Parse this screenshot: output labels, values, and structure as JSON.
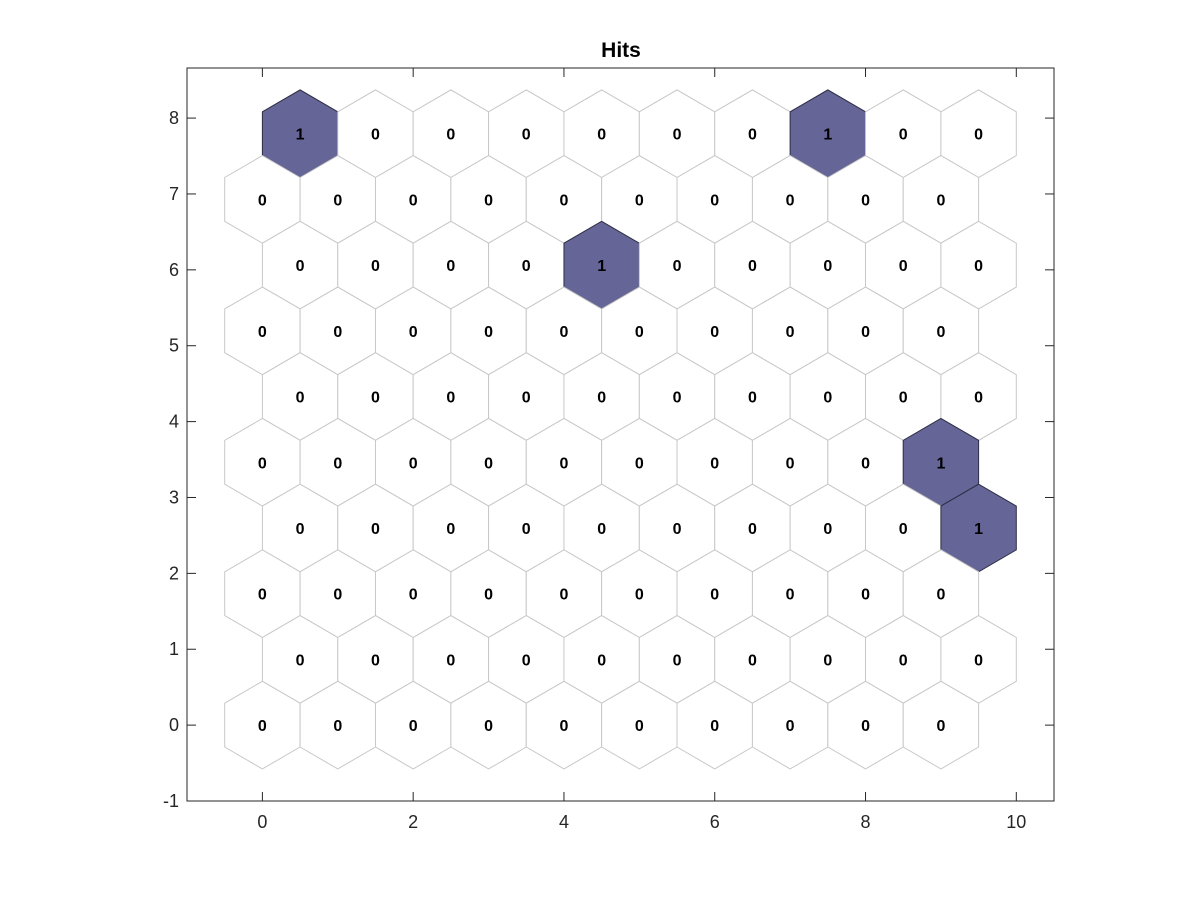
{
  "chart_data": {
    "type": "heatmap",
    "title": "Hits",
    "xlim": [
      -1,
      10.5
    ],
    "ylim": [
      -1,
      8.66
    ],
    "x_ticks": [
      0,
      2,
      4,
      6,
      8,
      10
    ],
    "y_ticks": [
      -1,
      0,
      1,
      2,
      3,
      4,
      5,
      6,
      7,
      8
    ],
    "grid": false,
    "grid_size": {
      "cols": 10,
      "rows": 10
    },
    "topology": "hexagonal",
    "hits": [
      [
        1,
        0,
        0,
        0,
        0,
        0,
        0,
        1,
        0,
        0
      ],
      [
        0,
        0,
        0,
        0,
        0,
        0,
        0,
        0,
        0,
        0
      ],
      [
        0,
        0,
        0,
        0,
        1,
        0,
        0,
        0,
        0,
        0
      ],
      [
        0,
        0,
        0,
        0,
        0,
        0,
        0,
        0,
        0,
        0
      ],
      [
        0,
        0,
        0,
        0,
        0,
        0,
        0,
        0,
        0,
        0
      ],
      [
        0,
        0,
        0,
        0,
        0,
        0,
        0,
        0,
        0,
        1
      ],
      [
        0,
        0,
        0,
        0,
        0,
        0,
        0,
        0,
        0,
        1
      ],
      [
        0,
        0,
        0,
        0,
        0,
        0,
        0,
        0,
        0,
        0
      ],
      [
        0,
        0,
        0,
        0,
        0,
        0,
        0,
        0,
        0,
        0
      ],
      [
        0,
        0,
        0,
        0,
        0,
        0,
        0,
        0,
        0,
        0
      ]
    ],
    "hits_row_order": "top-to-bottom",
    "colors": {
      "hit_fill": "#656598",
      "hit_edge": "#2e2e45",
      "empty_edge": "#c8c8c8"
    }
  }
}
